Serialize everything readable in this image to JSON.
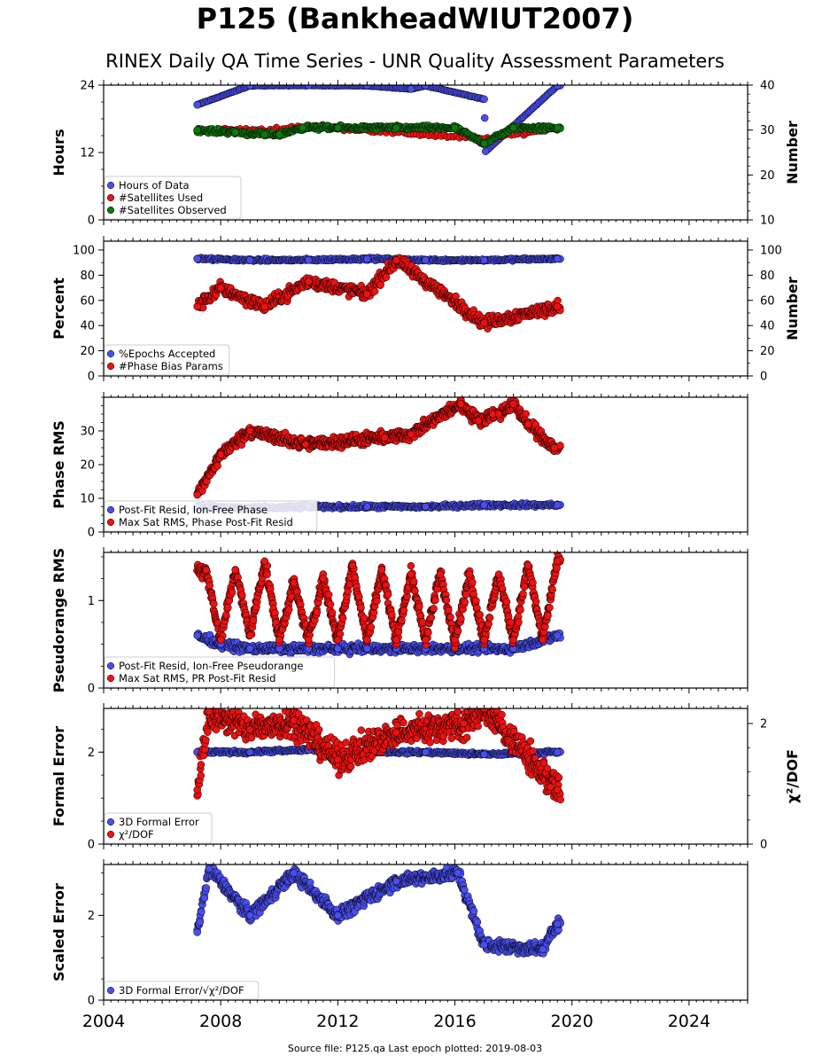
{
  "title": "P125 (BankheadWIUT2007)",
  "subtitle": "RINEX Daily QA Time Series - UNR Quality Assessment Parameters",
  "source_text": "Source file: P125.qa Last epoch plotted: 2019-08-03",
  "colors": {
    "blue": "#4a4ef0",
    "red": "#ee1111",
    "green": "#0e7a0e",
    "edge": "#000000"
  },
  "chart_data": [
    {
      "type": "scatter",
      "ylabel": "Hours",
      "ylabel_right": "Number",
      "xlim": [
        2004,
        2026
      ],
      "ylim": [
        0,
        24
      ],
      "yticks": [
        0,
        12,
        24
      ],
      "ylim_right": [
        10,
        40
      ],
      "yticks_right": [
        10,
        20,
        30,
        40
      ],
      "x_tick_labels": [
        "2004",
        "2008",
        "2012",
        "2016",
        "2020",
        "2024"
      ],
      "legend": [
        "Hours of Data",
        "#Satellites Used",
        "#Satellites Observed"
      ],
      "legend_position": "lower-left",
      "series": [
        {
          "name": "Hours of Data",
          "axis": "left",
          "color": "blue",
          "x": [
            2007.2,
            2009.0,
            2011.0,
            2013.0,
            2014.5,
            2015.0,
            2017.0,
            2017.05,
            2019.5
          ],
          "y": [
            20.5,
            23.9,
            23.95,
            23.9,
            23.3,
            23.9,
            21.5,
            12.2,
            23.9
          ]
        },
        {
          "name": "#Satellites Used",
          "axis": "right",
          "color": "red",
          "x": [
            2007.2,
            2009.8,
            2011.0,
            2017.0,
            2019.5
          ],
          "y": [
            30,
            30,
            31,
            28,
            30.5
          ]
        },
        {
          "name": "#Satellites Observed",
          "axis": "right",
          "color": "green",
          "x": [
            2007.2,
            2008.5,
            2009.5,
            2010.0,
            2010.8,
            2012.0,
            2014.0,
            2016.0,
            2017.0,
            2018.0,
            2019.5
          ],
          "y": [
            30,
            29.5,
            29,
            29,
            30.5,
            30.5,
            30.5,
            30.5,
            27,
            30.5,
            30.5
          ]
        }
      ]
    },
    {
      "type": "scatter",
      "ylabel": "Percent",
      "ylabel_right": "Number",
      "xlim": [
        2004,
        2026
      ],
      "ylim": [
        0,
        107
      ],
      "yticks": [
        0,
        20,
        40,
        60,
        80,
        100
      ],
      "ylim_right": [
        0,
        107
      ],
      "yticks_right": [
        0,
        20,
        40,
        60,
        80,
        100
      ],
      "x_tick_labels": [
        "2004",
        "2008",
        "2012",
        "2016",
        "2020",
        "2024"
      ],
      "legend": [
        "%Epochs Accepted",
        "#Phase Bias Params"
      ],
      "legend_position": "lower-left",
      "series": [
        {
          "name": "%Epochs Accepted",
          "axis": "left",
          "color": "blue",
          "x": [
            2007.2,
            2009.0,
            2011.0,
            2013.0,
            2015.0,
            2017.0,
            2019.5
          ],
          "y": [
            93,
            92,
            92,
            93,
            92,
            92,
            93
          ]
        },
        {
          "name": "#Phase Bias Params",
          "axis": "right",
          "color": "red",
          "x": [
            2007.2,
            2008.0,
            2009.5,
            2011.0,
            2013.0,
            2014.0,
            2017.0,
            2019.5
          ],
          "y": [
            55,
            70,
            55,
            75,
            65,
            92,
            42,
            55
          ]
        }
      ]
    },
    {
      "type": "scatter",
      "ylabel": "Phase RMS",
      "xlim": [
        2004,
        2026
      ],
      "ylim": [
        0,
        40
      ],
      "yticks": [
        0,
        10,
        20,
        30
      ],
      "x_tick_labels": [
        "2004",
        "2008",
        "2012",
        "2016",
        "2020",
        "2024"
      ],
      "legend": [
        "Post-Fit Resid, Ion-Free Phase",
        "Max Sat RMS, Phase Post-Fit Resid"
      ],
      "legend_position": "lower-left",
      "series": [
        {
          "name": "Post-Fit Resid, Ion-Free Phase",
          "color": "blue",
          "x": [
            2007.2,
            2009.0,
            2011.0,
            2013.0,
            2015.0,
            2017.0,
            2019.5
          ],
          "y": [
            7.5,
            7.0,
            7.5,
            7.5,
            7.5,
            8.0,
            8.0
          ]
        },
        {
          "name": "Max Sat RMS, Phase Post-Fit Resid",
          "color": "red",
          "x": [
            2007.2,
            2008.0,
            2009.0,
            2010.9,
            2013.6,
            2014.5,
            2016.2,
            2016.8,
            2017.3,
            2017.5,
            2018.0,
            2018.5,
            2019.4
          ],
          "y": [
            11,
            23,
            30,
            26,
            28,
            29,
            38,
            33,
            35,
            35,
            38,
            32,
            25
          ]
        }
      ]
    },
    {
      "type": "scatter",
      "ylabel": "Pseudorange RMS",
      "xlim": [
        2004,
        2026
      ],
      "ylim": [
        0,
        1.55
      ],
      "yticks": [
        0,
        1
      ],
      "x_tick_labels": [
        "2004",
        "2008",
        "2012",
        "2016",
        "2020",
        "2024"
      ],
      "legend": [
        "Post-Fit Resid, Ion-Free Pseudorange",
        "Max Sat RMS, PR Post-Fit Resid"
      ],
      "legend_position": "lower-left",
      "series": [
        {
          "name": "Post-Fit Resid, Ion-Free Pseudorange",
          "color": "blue",
          "x": [
            2007.2,
            2008.0,
            2009.0,
            2010.0,
            2011.0,
            2012.0,
            2013.0,
            2014.0,
            2015.0,
            2016.0,
            2017.0,
            2018.0,
            2019.5
          ],
          "y": [
            0.6,
            0.5,
            0.45,
            0.45,
            0.45,
            0.45,
            0.45,
            0.45,
            0.45,
            0.45,
            0.45,
            0.45,
            0.6
          ]
        },
        {
          "name": "Max Sat RMS, PR Post-Fit Resid",
          "color": "red",
          "x": [
            2007.5,
            2008.0,
            2008.5,
            2009.0,
            2009.5,
            2010.0,
            2010.5,
            2011.0,
            2011.5,
            2012.0,
            2012.5,
            2013.0,
            2013.5,
            2014.0,
            2014.5,
            2015.0,
            2015.5,
            2016.0,
            2016.5,
            2017.0,
            2017.5,
            2018.0,
            2018.5,
            2019.0,
            2019.5
          ],
          "y": [
            1.35,
            0.55,
            1.35,
            0.6,
            1.45,
            0.55,
            1.2,
            0.55,
            1.25,
            0.55,
            1.4,
            0.55,
            1.35,
            0.55,
            1.3,
            0.55,
            1.3,
            0.55,
            1.3,
            0.55,
            1.3,
            0.55,
            1.4,
            0.55,
            1.45
          ]
        }
      ]
    },
    {
      "type": "scatter",
      "ylabel": "Formal Error",
      "ylabel_right": "χ²/DOF",
      "xlim": [
        2004,
        2026
      ],
      "ylim": [
        0,
        2.95
      ],
      "yticks": [
        0,
        2
      ],
      "ylim_right": [
        0,
        2.25
      ],
      "yticks_right": [
        0,
        2
      ],
      "x_tick_labels": [
        "2004",
        "2008",
        "2012",
        "2016",
        "2020",
        "2024"
      ],
      "legend": [
        "3D Formal Error",
        "χ²/DOF"
      ],
      "legend_position": "lower-left",
      "series": [
        {
          "name": "3D Formal Error",
          "axis": "left",
          "color": "blue",
          "x": [
            2007.2,
            2009.0,
            2011.0,
            2013.0,
            2015.0,
            2017.0,
            2019.5
          ],
          "y": [
            2.0,
            2.0,
            2.05,
            2.0,
            2.0,
            1.95,
            2.0
          ]
        },
        {
          "name": "χ²/DOF",
          "axis": "right",
          "color": "red",
          "x": [
            2007.2,
            2007.6,
            2009.0,
            2010.5,
            2012.0,
            2014.0,
            2016.3,
            2017.0,
            2019.5
          ],
          "y": [
            0.9,
            2.2,
            1.9,
            2.05,
            1.4,
            1.85,
            2.0,
            2.25,
            0.9
          ]
        }
      ]
    },
    {
      "type": "scatter",
      "ylabel": "Scaled Error",
      "xlim": [
        2004,
        2026
      ],
      "ylim": [
        0,
        3.2
      ],
      "yticks": [
        0,
        2
      ],
      "x_tick_labels": [
        "2004",
        "2008",
        "2012",
        "2016",
        "2020",
        "2024"
      ],
      "legend": [
        "3D Formal Error/√χ²/DOF"
      ],
      "legend_position": "lower-left",
      "series": [
        {
          "name": "3D Formal Error/√χ²/DOF",
          "color": "blue",
          "x": [
            2007.2,
            2007.6,
            2009.0,
            2010.5,
            2012.0,
            2014.0,
            2016.1,
            2017.0,
            2019.0,
            2019.5
          ],
          "y": [
            1.6,
            3.1,
            2.0,
            3.0,
            2.0,
            2.8,
            3.0,
            1.3,
            1.2,
            1.8
          ]
        }
      ]
    }
  ]
}
